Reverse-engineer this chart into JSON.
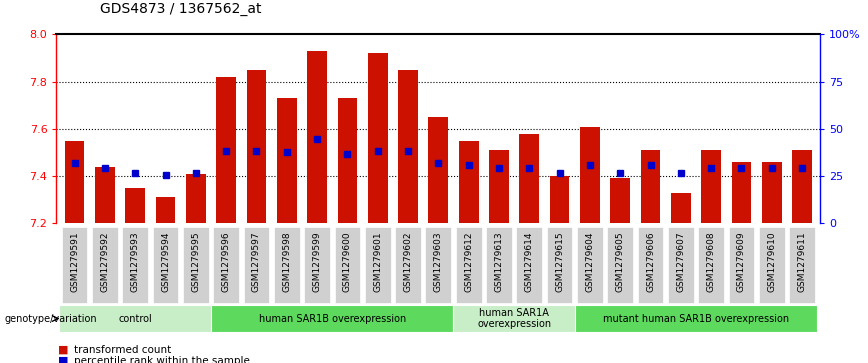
{
  "title": "GDS4873 / 1367562_at",
  "samples": [
    "GSM1279591",
    "GSM1279592",
    "GSM1279593",
    "GSM1279594",
    "GSM1279595",
    "GSM1279596",
    "GSM1279597",
    "GSM1279598",
    "GSM1279599",
    "GSM1279600",
    "GSM1279601",
    "GSM1279602",
    "GSM1279603",
    "GSM1279612",
    "GSM1279613",
    "GSM1279614",
    "GSM1279615",
    "GSM1279604",
    "GSM1279605",
    "GSM1279606",
    "GSM1279607",
    "GSM1279608",
    "GSM1279609",
    "GSM1279610",
    "GSM1279611"
  ],
  "transformed_count": [
    7.55,
    7.44,
    7.35,
    7.31,
    7.41,
    7.82,
    7.85,
    7.73,
    7.93,
    7.73,
    7.92,
    7.85,
    7.65,
    7.55,
    7.51,
    7.58,
    7.4,
    7.61,
    7.39,
    7.51,
    7.33,
    7.51,
    7.46,
    7.46,
    7.51
  ],
  "percentile_rank_y": [
    7.455,
    7.435,
    7.415,
    7.405,
    7.415,
    7.505,
    7.505,
    7.5,
    7.555,
    7.495,
    7.505,
    7.505,
    7.455,
    7.445,
    7.435,
    7.435,
    7.415,
    7.445,
    7.415,
    7.445,
    7.415,
    7.435,
    7.435,
    7.435,
    7.435
  ],
  "groups": [
    {
      "label": "control",
      "start": 0,
      "end": 4,
      "color": "#c8eec8"
    },
    {
      "label": "human SAR1B overexpression",
      "start": 5,
      "end": 12,
      "color": "#5dda5d"
    },
    {
      "label": "human SAR1A\noverexpression",
      "start": 13,
      "end": 16,
      "color": "#c8eec8"
    },
    {
      "label": "mutant human SAR1B overexpression",
      "start": 17,
      "end": 24,
      "color": "#5dda5d"
    }
  ],
  "ylim_left": [
    7.2,
    8.0
  ],
  "ylim_right": [
    0,
    100
  ],
  "yticks_left": [
    7.2,
    7.4,
    7.6,
    7.8,
    8.0
  ],
  "yticks_right": [
    0,
    25,
    50,
    75,
    100
  ],
  "ytick_labels_right": [
    "0",
    "25",
    "50",
    "75",
    "100%"
  ],
  "bar_color": "#cc1100",
  "dot_color": "#0000cc",
  "legend_items": [
    {
      "color": "#cc1100",
      "label": "transformed count"
    },
    {
      "color": "#0000cc",
      "label": "percentile rank within the sample"
    }
  ],
  "genotype_label": "genotype/variation",
  "background_color": "#ffffff",
  "xtick_bg_color": "#d0d0d0",
  "title_fontsize": 10,
  "tick_fontsize": 8,
  "xtick_fontsize": 6.5
}
